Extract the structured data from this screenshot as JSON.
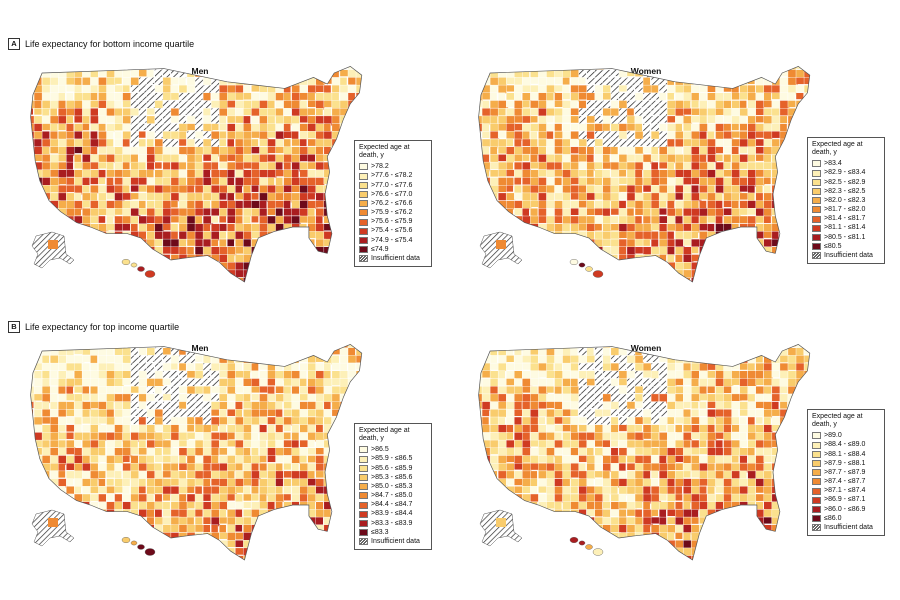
{
  "panels": [
    {
      "letter": "A",
      "title": "Life expectancy for bottom income quartile",
      "maps": [
        {
          "title": "Men",
          "legend_title": "Expected age at death, y",
          "legend": [
            ">78.2",
            ">77.6 - ≤78.2",
            ">77.0 - ≤77.6",
            ">76.6 - ≤77.0",
            ">76.2 - ≤76.6",
            ">75.9 - ≤76.2",
            ">75.6 - ≤75.9",
            ">75.4 - ≤75.6",
            ">74.9 - ≤75.4",
            "≤74.9"
          ],
          "insufficient": "Insufficient data"
        },
        {
          "title": "Women",
          "legend_title": "Expected age at death, y",
          "legend": [
            ">83.4",
            ">82.9 - ≤83.4",
            ">82.5 - ≤82.9",
            ">82.3 - ≤82.5",
            ">82.0 - ≤82.3",
            ">81.7 - ≤82.0",
            ">81.4 - ≤81.7",
            ">81.1 - ≤81.4",
            ">80.5 - ≤81.1",
            "≤80.5"
          ],
          "insufficient": "Insufficient data"
        }
      ]
    },
    {
      "letter": "B",
      "title": "Life expectancy for top income quartile",
      "maps": [
        {
          "title": "Men",
          "legend_title": "Expected age at death, y",
          "legend": [
            ">86.5",
            ">85.9 - ≤86.5",
            ">85.6 - ≤85.9",
            ">85.3 - ≤85.6",
            ">85.0 - ≤85.3",
            ">84.7 - ≤85.0",
            ">84.4 - ≤84.7",
            ">83.9 - ≤84.4",
            ">83.3 - ≤83.9",
            "≤83.3"
          ],
          "insufficient": "Insufficient data"
        },
        {
          "title": "Women",
          "legend_title": "Expected age at death, y",
          "legend": [
            ">89.0",
            ">88.4 - ≤89.0",
            ">88.1 - ≤88.4",
            ">87.9 - ≤88.1",
            ">87.7 - ≤87.9",
            ">87.4 - ≤87.7",
            ">87.1 - ≤87.4",
            ">86.9 - ≤87.1",
            ">86.0 - ≤86.9",
            "≤86.0"
          ],
          "insufficient": "Insufficient data"
        }
      ]
    }
  ],
  "colors": [
    "#fefbe2",
    "#fdf0b8",
    "#fbe18e",
    "#f9cc6c",
    "#f5ad4a",
    "#ef8a33",
    "#e5622a",
    "#cf3a22",
    "#a91d20",
    "#6d0a1a"
  ],
  "hatch_color": "#333333"
}
